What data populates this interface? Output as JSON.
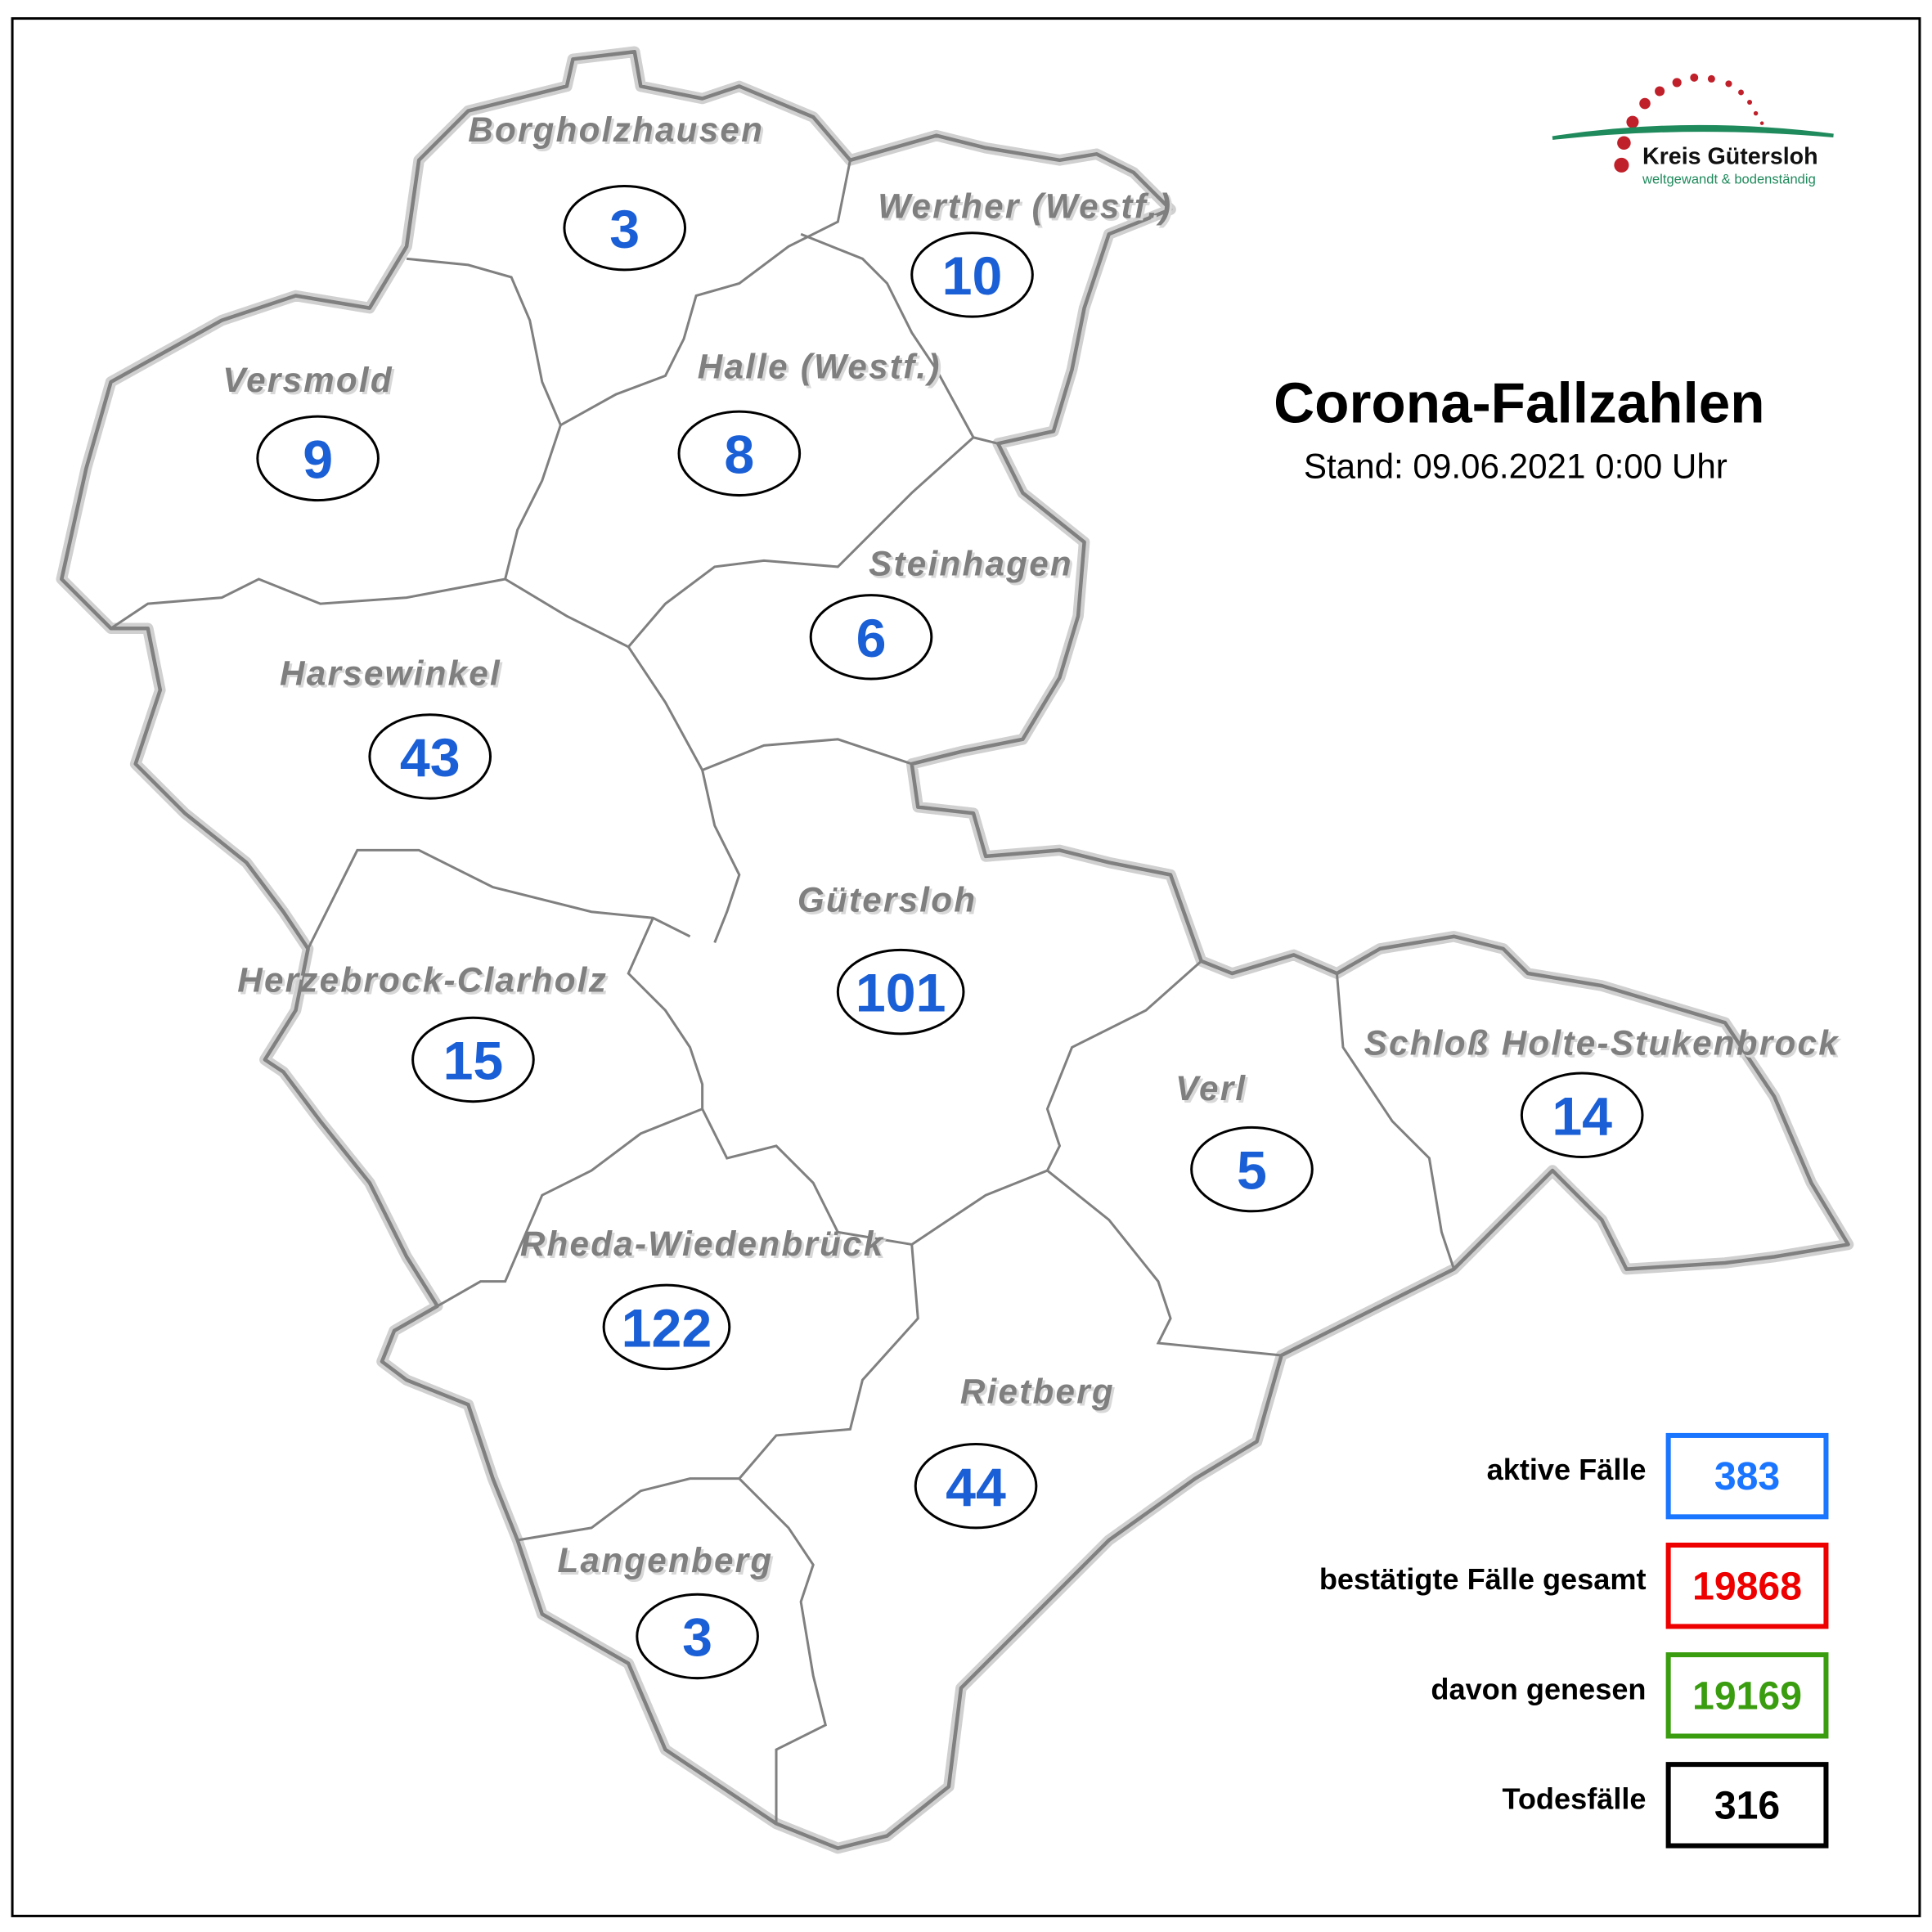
{
  "title": "Corona-Fallzahlen",
  "subtitle": "Stand: 09.06.2021 0:00 Uhr",
  "logo": {
    "name": "Kreis Gütersloh",
    "tagline": "weltgewandt & bodenständig"
  },
  "municipalities": [
    {
      "name": "Borgholzhausen",
      "active": "3"
    },
    {
      "name": "Werther (Westf.)",
      "active": "10"
    },
    {
      "name": "Versmold",
      "active": "9"
    },
    {
      "name": "Halle (Westf.)",
      "active": "8"
    },
    {
      "name": "Steinhagen",
      "active": "6"
    },
    {
      "name": "Harsewinkel",
      "active": "43"
    },
    {
      "name": "Gütersloh",
      "active": "101"
    },
    {
      "name": "Herzebrock-Clarholz",
      "active": "15"
    },
    {
      "name": "Verl",
      "active": "5"
    },
    {
      "name": "Schloß Holte-Stukenbrock",
      "active": "14"
    },
    {
      "name": "Rheda-Wiedenbrück",
      "active": "122"
    },
    {
      "name": "Rietberg",
      "active": "44"
    },
    {
      "name": "Langenberg",
      "active": "3"
    }
  ],
  "legend": [
    {
      "label": "aktive Fälle",
      "value": "383",
      "color": "#1a75ff"
    },
    {
      "label": "bestätigte Fälle gesamt",
      "value": "19868",
      "color": "#ee0000"
    },
    {
      "label": "davon genesen",
      "value": "19169",
      "color": "#3a9d10"
    },
    {
      "label": "Todesfälle",
      "value": "316",
      "color": "#000000"
    }
  ],
  "colors": {
    "border": "#808080",
    "count_text": "#1a5fd6",
    "label_text": "#7f7f7f"
  }
}
